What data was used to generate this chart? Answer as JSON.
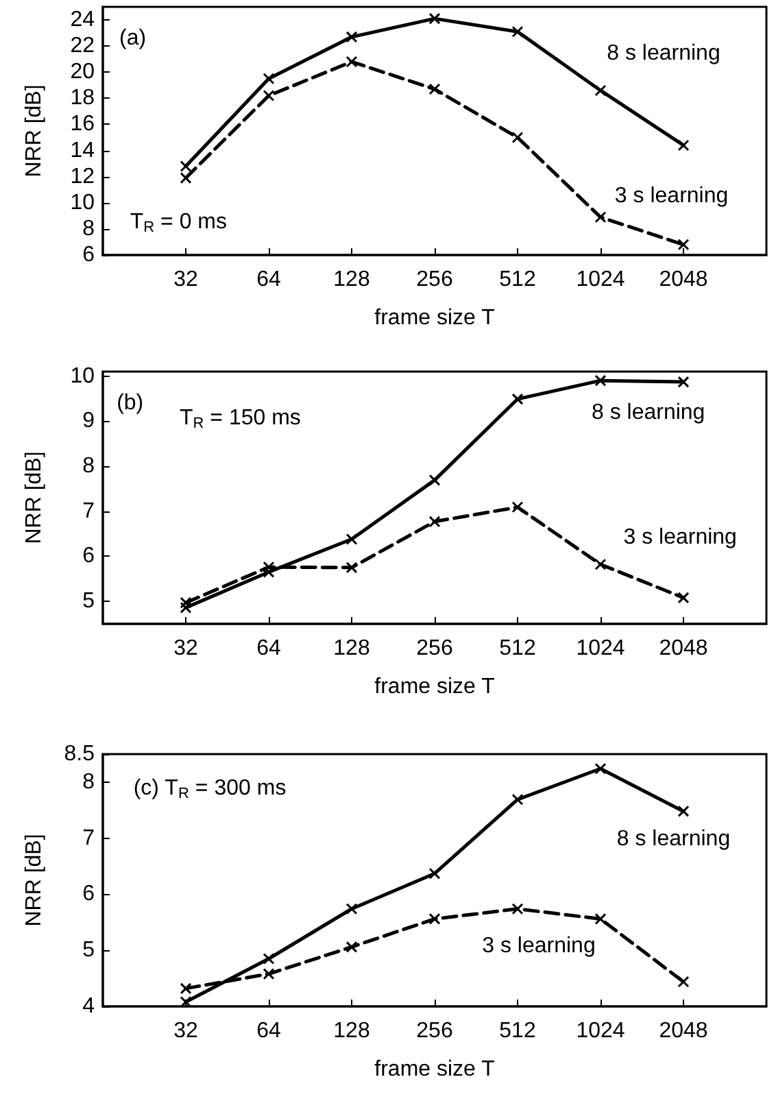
{
  "chart_data": [
    {
      "type": "line",
      "xlabel": "frame size T",
      "ylabel": "NRR [dB]",
      "log": "x",
      "marker": "cross",
      "grid": false,
      "x": [
        32,
        64,
        128,
        256,
        512,
        1024,
        2048
      ],
      "xlim": [
        16,
        4096
      ],
      "xticks": [
        32,
        64,
        128,
        256,
        512,
        1024,
        2048
      ],
      "ylim": [
        6,
        25
      ],
      "yticks": [
        6,
        8,
        10,
        12,
        14,
        16,
        18,
        20,
        22,
        24
      ],
      "series": [
        {
          "name": "8 s learning",
          "color": "#000000",
          "line_style": "solid",
          "values": [
            12.8,
            19.5,
            22.7,
            24.1,
            23.1,
            18.6,
            14.4
          ]
        },
        {
          "name": "3 s learning",
          "color": "#000000",
          "line_style": "dashed",
          "values": [
            11.9,
            18.2,
            20.8,
            18.7,
            15.0,
            8.9,
            6.8
          ]
        }
      ],
      "annotations": [
        "(a)",
        "T$_{R}$ = 0 ms"
      ]
    },
    {
      "type": "line",
      "xlabel": "frame size T",
      "ylabel": "NRR [dB]",
      "log": "x",
      "marker": "cross",
      "grid": false,
      "x": [
        32,
        64,
        128,
        256,
        512,
        1024,
        2048
      ],
      "xlim": [
        16,
        4096
      ],
      "xticks": [
        32,
        64,
        128,
        256,
        512,
        1024,
        2048
      ],
      "ylim": [
        4.5,
        10.1
      ],
      "yticks": [
        5,
        6,
        7,
        8,
        9,
        10
      ],
      "series": [
        {
          "name": "8 s learning",
          "color": "#000000",
          "line_style": "solid",
          "values": [
            4.86,
            5.65,
            6.38,
            7.69,
            9.49,
            9.9,
            9.87
          ]
        },
        {
          "name": "3 s learning",
          "color": "#000000",
          "line_style": "dashed",
          "values": [
            4.97,
            5.76,
            5.75,
            6.77,
            7.09,
            5.82,
            5.08
          ]
        }
      ],
      "annotations": [
        "(b)",
        "T$_{R}$ = 150 ms"
      ]
    },
    {
      "type": "line",
      "xlabel": "frame size T",
      "ylabel": "NRR [dB]",
      "log": "x",
      "marker": "cross",
      "grid": false,
      "x": [
        32,
        64,
        128,
        256,
        512,
        1024,
        2048
      ],
      "xlim": [
        16,
        4096
      ],
      "xticks": [
        32,
        64,
        128,
        256,
        512,
        1024,
        2048
      ],
      "ylim": [
        4,
        8.5
      ],
      "yticks": [
        4,
        5,
        6,
        7,
        8,
        8.5
      ],
      "series": [
        {
          "name": "8 s learning",
          "color": "#000000",
          "line_style": "solid",
          "values": [
            4.08,
            4.85,
            5.74,
            6.37,
            7.69,
            8.24,
            7.48
          ]
        },
        {
          "name": "3 s learning",
          "color": "#000000",
          "line_style": "dashed",
          "values": [
            4.32,
            4.58,
            5.06,
            5.56,
            5.74,
            5.56,
            4.44
          ]
        }
      ],
      "annotations": [
        "(c) T$_{R}$ = 300 ms"
      ]
    }
  ]
}
